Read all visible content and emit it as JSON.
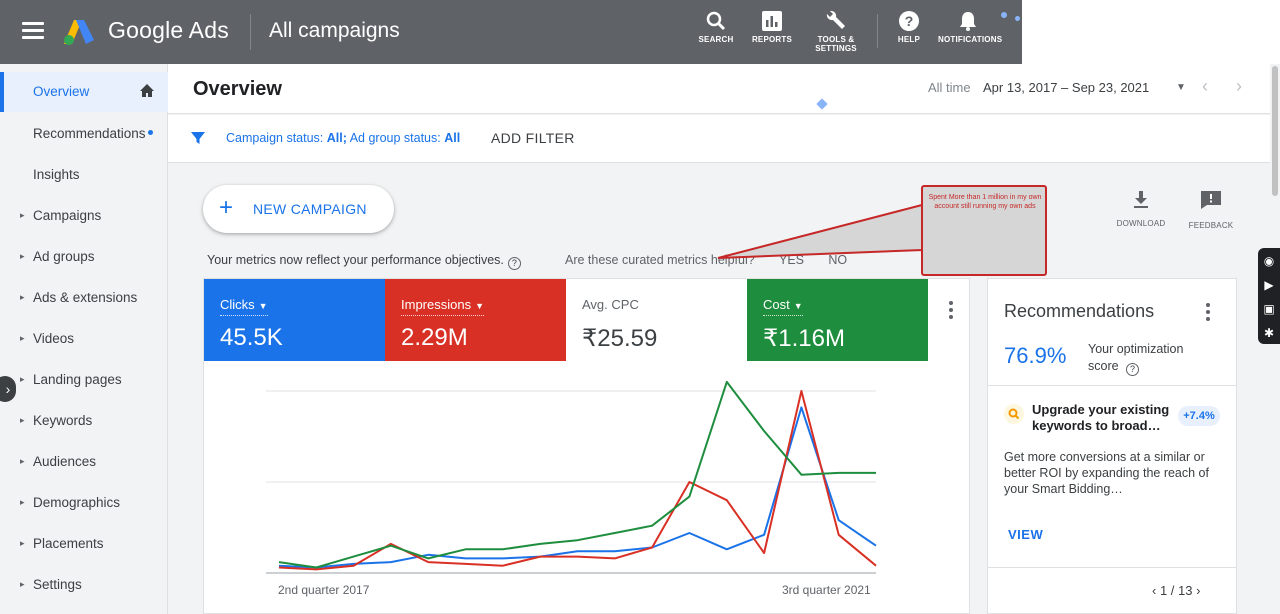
{
  "header": {
    "brand": "Google Ads",
    "breadcrumb": "All campaigns",
    "tools": [
      {
        "label": "SEARCH",
        "icon": "search-icon"
      },
      {
        "label": "REPORTS",
        "icon": "reports-icon"
      },
      {
        "label": "TOOLS &\nSETTINGS",
        "icon": "wrench-icon"
      },
      {
        "label": "HELP",
        "icon": "help-icon"
      },
      {
        "label": "NOTIFICATIONS",
        "icon": "bell-icon"
      }
    ]
  },
  "sidebar": {
    "items": [
      {
        "label": "Overview",
        "active": true
      },
      {
        "label": "Recommendations"
      },
      {
        "label": "Insights"
      },
      {
        "label": "Campaigns",
        "expandable": true
      },
      {
        "label": "Ad groups",
        "expandable": true
      },
      {
        "label": "Ads & extensions",
        "expandable": true
      },
      {
        "label": "Videos",
        "expandable": true
      },
      {
        "label": "Landing pages",
        "expandable": true
      },
      {
        "label": "Keywords",
        "expandable": true
      },
      {
        "label": "Audiences",
        "expandable": true
      },
      {
        "label": "Demographics",
        "expandable": true
      },
      {
        "label": "Placements",
        "expandable": true
      },
      {
        "label": "Settings",
        "expandable": true
      }
    ]
  },
  "main": {
    "title": "Overview",
    "date_label": "All time",
    "date_range": "Apr 13, 2017 – Sep 23, 2021",
    "filter": {
      "campaign_status_label": "Campaign status:",
      "campaign_status_value": "All;",
      "ad_group_status_label": "Ad group status:",
      "ad_group_status_value": "All",
      "add_filter": "ADD FILTER"
    },
    "new_campaign": "NEW CAMPAIGN",
    "download": "DOWNLOAD",
    "feedback": "FEEDBACK",
    "metrics_note": "Your metrics now reflect your performance objectives.",
    "curated_question": "Are these curated metrics helpful?",
    "yes": "YES",
    "no": "NO",
    "annotation": "Spent More than 1 million in my own account still running my own ads"
  },
  "metrics": [
    {
      "label": "Clicks",
      "value": "45.5K",
      "color": "#1a73e8"
    },
    {
      "label": "Impressions",
      "value": "2.29M",
      "color": "#d93025"
    },
    {
      "label": "Avg. CPC",
      "value": "₹25.59",
      "color": "#ffffff"
    },
    {
      "label": "Cost",
      "value": "₹1.16M",
      "color": "#1e8e3e"
    }
  ],
  "chart_data": {
    "type": "line",
    "x_start_label": "2nd quarter 2017",
    "x_end_label": "3rd quarter 2021",
    "series": [
      {
        "name": "Clicks",
        "color": "#1a73e8",
        "values": [
          0.04,
          0.03,
          0.05,
          0.06,
          0.1,
          0.08,
          0.08,
          0.09,
          0.12,
          0.12,
          0.14,
          0.22,
          0.13,
          0.21,
          0.91,
          0.29,
          0.15
        ]
      },
      {
        "name": "Impressions",
        "color": "#d93025",
        "values": [
          0.03,
          0.02,
          0.04,
          0.16,
          0.06,
          0.05,
          0.04,
          0.09,
          0.09,
          0.08,
          0.14,
          0.5,
          0.4,
          0.11,
          1.0,
          0.21,
          0.04
        ]
      },
      {
        "name": "Cost",
        "color": "#1e8e3e",
        "values": [
          0.06,
          0.03,
          0.09,
          0.15,
          0.08,
          0.13,
          0.13,
          0.16,
          0.18,
          0.22,
          0.26,
          0.42,
          1.05,
          0.78,
          0.54,
          0.55,
          0.55
        ]
      }
    ]
  },
  "recommendations": {
    "title": "Recommendations",
    "score": "76.9%",
    "score_label": "Your optimization score",
    "suggestion_title": "Upgrade your existing keywords to broad…",
    "suggestion_badge": "+7.4%",
    "suggestion_body": "Get more conversions at a similar or better ROI by expanding the reach of your Smart Bidding…",
    "view": "VIEW",
    "pager": "1 / 13"
  }
}
